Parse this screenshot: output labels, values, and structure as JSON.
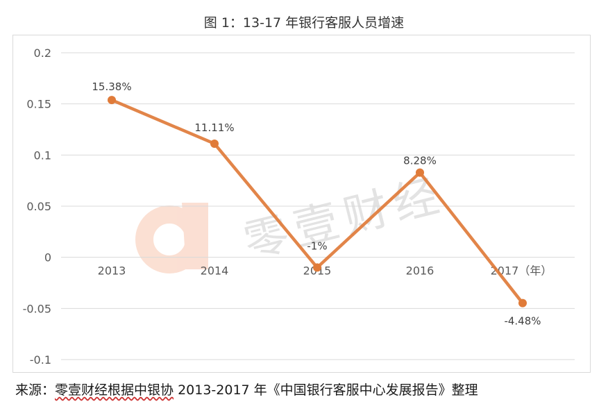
{
  "chart_data": {
    "type": "line",
    "title": "图 1：13-17 年银行客服人员增速",
    "categories": [
      "2013",
      "2014",
      "2015",
      "2016",
      "2017（年）"
    ],
    "series": [
      {
        "values": [
          0.1538,
          0.1111,
          -0.01,
          0.0828,
          -0.0448
        ],
        "data_labels": [
          "15.38%",
          "11.11%",
          "-1%",
          "8.28%",
          "-4.48%"
        ]
      }
    ],
    "y_ticks": [
      "0.2",
      "0.15",
      "0.1",
      "0.05",
      "0",
      "-0.05",
      "-0.1"
    ],
    "ylim": [
      -0.1,
      0.2
    ],
    "grid": true,
    "legend": "none",
    "colors": {
      "line": "#e07b39",
      "grid": "#d9d9d9",
      "axis_text": "#595959"
    }
  },
  "watermark": {
    "text": "零壹财经",
    "logo_icon": "lingyi-logo-icon",
    "color": "#f4a582"
  },
  "source": {
    "prefix": "来源：",
    "highlight": "零壹财经根据中银协",
    "rest": " 2013-2017 年《中国银行客服中心发展报告》整理"
  }
}
